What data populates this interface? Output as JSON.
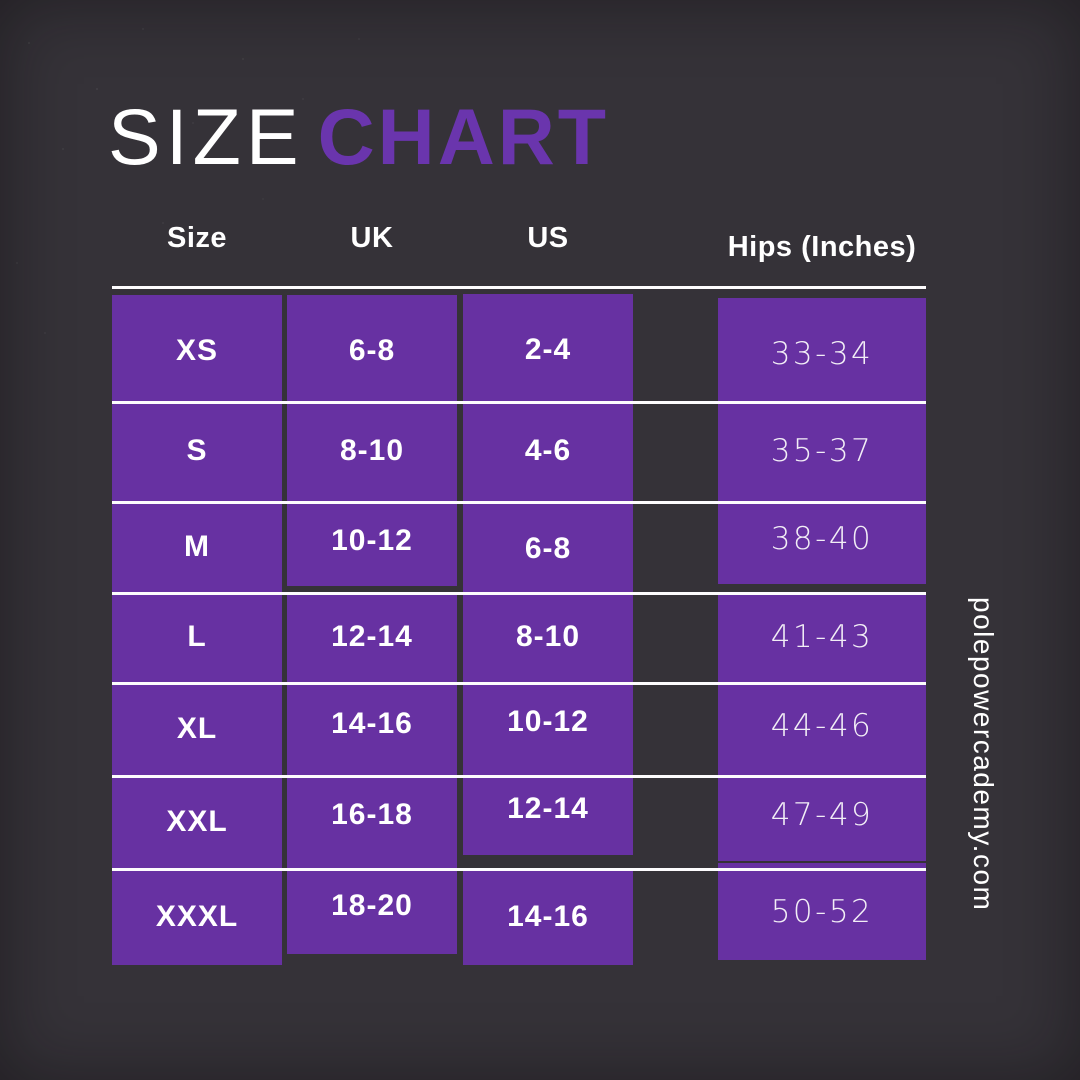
{
  "title": {
    "size": "SIZE",
    "chart": "CHART"
  },
  "colors": {
    "background": "#353238",
    "cell_purple": "#6731a2",
    "title_purple": "#6a35ad",
    "line_white": "#fdfcfe",
    "text_white": "#ffffff"
  },
  "footer": {
    "website": "polepowercademy.com"
  },
  "chart_data": {
    "type": "table",
    "title": "SIZE CHART",
    "columns": [
      "Size",
      "UK",
      "US",
      "Hips (Inches)"
    ],
    "rows": [
      [
        "XS",
        "6-8",
        "2-4",
        "33-34"
      ],
      [
        "S",
        "8-10",
        "4-6",
        "35-37"
      ],
      [
        "M",
        "10-12",
        "6-8",
        "38-40"
      ],
      [
        "L",
        "12-14",
        "8-10",
        "41-43"
      ],
      [
        "XL",
        "14-16",
        "10-12",
        "44-46"
      ],
      [
        "XXL",
        "16-18",
        "12-14",
        "47-49"
      ],
      [
        "XXXL",
        "18-20",
        "14-16",
        "50-52"
      ]
    ]
  }
}
